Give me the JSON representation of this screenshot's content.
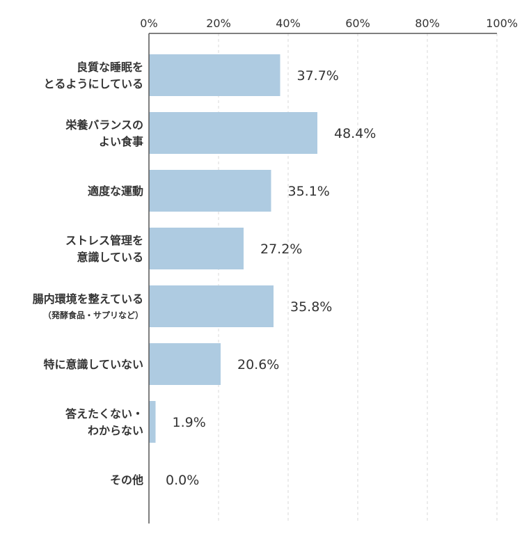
{
  "chart_data": {
    "type": "bar",
    "orientation": "horizontal",
    "title": "",
    "xlabel": "",
    "ylabel": "",
    "xlim": [
      0,
      100
    ],
    "ticks": [
      "0%",
      "20%",
      "40%",
      "60%",
      "80%",
      "100%"
    ],
    "grid": true,
    "bar_color": "#aecbe1",
    "categories": [
      {
        "lines": [
          "良質な睡眠を",
          "とるようにしている"
        ],
        "sub": "",
        "value": 37.7,
        "label": "37.7%"
      },
      {
        "lines": [
          "栄養バランスの",
          "よい食事"
        ],
        "sub": "",
        "value": 48.4,
        "label": "48.4%"
      },
      {
        "lines": [
          "適度な運動"
        ],
        "sub": "",
        "value": 35.1,
        "label": "35.1%"
      },
      {
        "lines": [
          "ストレス管理を",
          "意識している"
        ],
        "sub": "",
        "value": 27.2,
        "label": "27.2%"
      },
      {
        "lines": [
          "腸内環境を整えている"
        ],
        "sub": "（発酵食品・サプリなど）",
        "value": 35.8,
        "label": "35.8%"
      },
      {
        "lines": [
          "特に意識していない"
        ],
        "sub": "",
        "value": 20.6,
        "label": "20.6%"
      },
      {
        "lines": [
          "答えたくない・",
          "わからない"
        ],
        "sub": "",
        "value": 1.9,
        "label": "1.9%"
      },
      {
        "lines": [
          "その他"
        ],
        "sub": "",
        "value": 0.0,
        "label": "0.0%"
      }
    ]
  }
}
